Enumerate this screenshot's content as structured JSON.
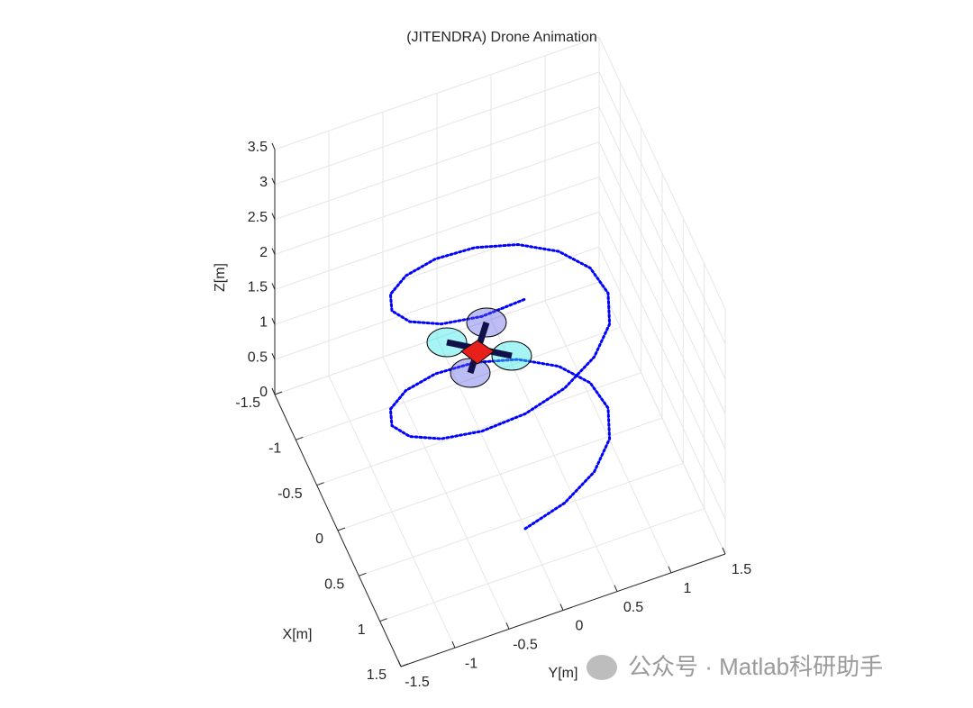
{
  "chart_data": {
    "type": "line3d",
    "title": "(JITENDRA) Drone Animation",
    "xlabel": "X[m]",
    "ylabel": "Y[m]",
    "zlabel": "Z[m]",
    "xlim": [
      -1.5,
      1.5
    ],
    "ylim": [
      -1.5,
      1.5
    ],
    "zlim": [
      0,
      3.5
    ],
    "xticks": [
      -1.5,
      -1,
      -0.5,
      0,
      0.5,
      1,
      1.5
    ],
    "yticks": [
      -1.5,
      -1,
      -0.5,
      0,
      0.5,
      1,
      1.5
    ],
    "zticks": [
      0,
      0.5,
      1,
      1.5,
      2,
      2.5,
      3,
      3.5
    ],
    "grid": true,
    "series": [
      {
        "color": "#0000ff",
        "x": [
          0.6,
          0.554,
          0.424,
          0.23,
          0,
          -0.23,
          -0.424,
          -0.554,
          -0.6,
          -0.554,
          -0.424,
          -0.23,
          0,
          0.23,
          0.424,
          0.554,
          0.6,
          0.554,
          0.424,
          0.23,
          0,
          -0.23,
          -0.424,
          -0.554,
          -0.6,
          -0.554,
          -0.424,
          -0.23,
          0,
          0.23,
          0.424,
          0.554,
          0.6
        ],
        "y": [
          0,
          0.383,
          0.707,
          0.924,
          1,
          0.924,
          0.707,
          0.383,
          0,
          -0.383,
          -0.707,
          -0.924,
          -1,
          -0.924,
          -0.707,
          -0.383,
          0,
          0.383,
          0.707,
          0.924,
          1,
          0.924,
          0.707,
          0.383,
          0,
          -0.383,
          -0.707,
          -0.924,
          -1,
          -0.924,
          -0.707,
          -0.383,
          0
        ],
        "z": [
          0,
          0.103,
          0.205,
          0.308,
          0.41,
          0.513,
          0.615,
          0.718,
          0.82,
          0.923,
          1.025,
          1.128,
          1.23,
          1.333,
          1.435,
          1.538,
          1.64,
          1.743,
          1.845,
          1.948,
          2.05,
          2.153,
          2.255,
          2.358,
          2.46,
          2.563,
          2.665,
          2.768,
          2.87,
          2.973,
          3.075,
          3.178,
          3.28
        ]
      }
    ]
  },
  "watermark": "公众号 · Matlab科研助手"
}
